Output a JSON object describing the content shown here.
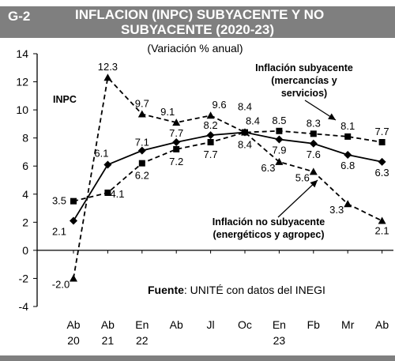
{
  "header": {
    "figure_id": "G-2",
    "title_line1": "INFLACION (INPC) SUBYACENTE Y NO",
    "title_line2": "SUBYACENTE (2020-23)"
  },
  "colors": {
    "header_bg": "#7f7f7f",
    "series": "#000000",
    "grid": "#d9d9d9"
  },
  "chart_data": {
    "type": "line",
    "title": "INFLACION (INPC) SUBYACENTE Y NO SUBYACENTE (2020-23)",
    "subtitle": "(Variación % anual)",
    "categories": [
      {
        "line1": "Ab",
        "line2": "20"
      },
      {
        "line1": "Ab",
        "line2": "21"
      },
      {
        "line1": "En",
        "line2": "22"
      },
      {
        "line1": "Ab",
        "line2": ""
      },
      {
        "line1": "Jl",
        "line2": ""
      },
      {
        "line1": "Oc",
        "line2": ""
      },
      {
        "line1": "En",
        "line2": "23"
      },
      {
        "line1": "Fb",
        "line2": ""
      },
      {
        "line1": "Mr",
        "line2": ""
      },
      {
        "line1": "Ab",
        "line2": ""
      }
    ],
    "series": [
      {
        "name": "INPC",
        "label_lines": [
          "INPC"
        ],
        "marker": "diamond",
        "dash": "solid",
        "values": [
          2.1,
          6.1,
          7.1,
          7.7,
          8.2,
          8.4,
          7.9,
          7.6,
          6.8,
          6.3
        ],
        "labels": [
          "2.1",
          "6.1",
          "7.1",
          "7.7",
          "8.2",
          "8.4",
          "7.9",
          "7.6",
          "6.8",
          "6.3"
        ]
      },
      {
        "name": "Inflación subyacente (mercancías y servicios)",
        "label_lines": [
          "Inflación subyacente",
          "(mercancías y",
          "servicios)"
        ],
        "marker": "square",
        "dash": "dashed",
        "values": [
          3.5,
          4.1,
          6.2,
          7.2,
          7.7,
          8.4,
          8.5,
          8.3,
          8.1,
          7.7
        ],
        "labels": [
          "3.5",
          "4.1",
          "6.2",
          "7.2",
          "7.7",
          "8.4",
          "8.5",
          "8.3",
          "8.1",
          "7.7"
        ]
      },
      {
        "name": "Inflación no subyacente (energéticos y agropec)",
        "label_lines": [
          "Inflación no subyacente",
          "(energéticos y agropec)"
        ],
        "marker": "triangle",
        "dash": "dashed",
        "values": [
          -2.0,
          12.3,
          9.7,
          9.1,
          9.6,
          8.4,
          6.3,
          5.6,
          3.3,
          2.1
        ],
        "labels": [
          "-2.0",
          "12.3",
          "9.7",
          "9.1",
          "9.6",
          "8.4",
          "6.3",
          "5.6",
          "3.3",
          "2.1"
        ]
      }
    ],
    "ylim": [
      -4,
      14
    ],
    "yticks": [
      -4,
      -2,
      0,
      2,
      4,
      6,
      8,
      10,
      12,
      14
    ],
    "grid": false,
    "legend": "annotations inside plot",
    "source_label": "Fuente",
    "source_text": ": UNITÉ con datos del INEGI"
  }
}
